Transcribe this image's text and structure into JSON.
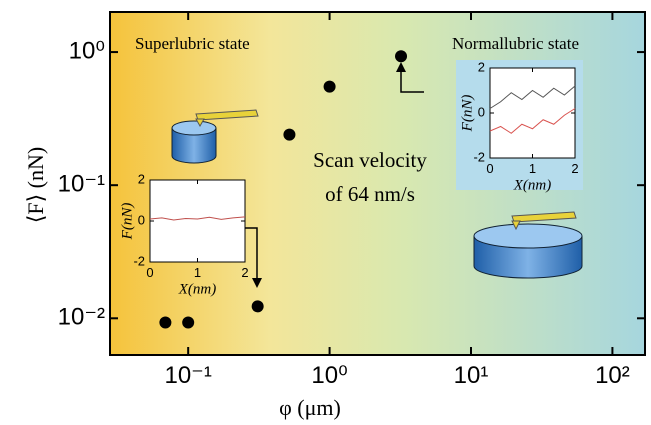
{
  "chart_data": [
    {
      "type": "scatter",
      "xlabel": "φ (μm)",
      "ylabel": "⟨F⟩ (nN)",
      "annotations": [
        "Superlubric state",
        "Normallubric state",
        "Scan velocity",
        "of 64 nm/s"
      ],
      "x": [
        0.069,
        0.1,
        0.31,
        0.52,
        1.0,
        3.2
      ],
      "values": [
        0.0093,
        0.0093,
        0.0123,
        0.24,
        0.55,
        0.93
      ],
      "color": "#000000",
      "log": true,
      "xlim": [
        0.028,
        170
      ],
      "ylim": [
        0.0053,
        2
      ],
      "xticks": [
        {
          "value": 0.1,
          "label": "10⁻¹"
        },
        {
          "value": 1,
          "label": "10⁰"
        },
        {
          "value": 10,
          "label": "10¹"
        },
        {
          "value": 100,
          "label": "10²"
        }
      ],
      "yticks": [
        {
          "value": 0.01,
          "label": "10⁻²"
        },
        {
          "value": 0.1,
          "label": "10⁻¹"
        },
        {
          "value": 1,
          "label": "10⁰"
        }
      ]
    },
    {
      "type": "line",
      "xlabel": "X(nm)",
      "ylabel": "F(nN)",
      "x": [
        0,
        0.25,
        0.5,
        0.75,
        1,
        1.25,
        1.5,
        1.75,
        2
      ],
      "series": [
        {
          "color": "#c0504d",
          "values": [
            0.1,
            0.15,
            0.05,
            0.12,
            0.1,
            0.18,
            0.08,
            0.15,
            0.2
          ]
        }
      ],
      "xlim": [
        0,
        2
      ],
      "ylim": [
        -2,
        2
      ],
      "xticks": [
        0,
        1,
        2
      ],
      "yticks": [
        -2,
        0,
        2
      ]
    },
    {
      "type": "line",
      "xlabel": "X(nm)",
      "ylabel": "F(nN)",
      "x": [
        0,
        0.25,
        0.5,
        0.75,
        1,
        1.25,
        1.5,
        1.75,
        2
      ],
      "series": [
        {
          "color": "#555555",
          "values": [
            0.2,
            0.5,
            0.9,
            0.6,
            1.0,
            0.7,
            1.1,
            0.8,
            1.2
          ]
        },
        {
          "color": "#d9534f",
          "values": [
            -0.8,
            -0.6,
            -0.9,
            -0.5,
            -0.7,
            -0.3,
            -0.5,
            -0.1,
            0.2
          ]
        }
      ],
      "xlim": [
        0,
        2
      ],
      "ylim": [
        -2,
        2
      ],
      "xticks": [
        0,
        1,
        2
      ],
      "yticks": [
        -2,
        0,
        2
      ]
    }
  ]
}
